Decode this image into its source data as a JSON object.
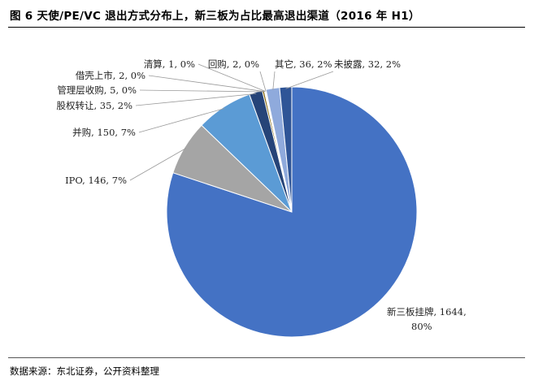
{
  "title": "图 6 天使/PE/VC 退出方式分布上，新三板为占比最高退出渠道（2016 年 H1）",
  "source": "数据来源：东北证券，公开资料整理",
  "chart_data": {
    "type": "pie",
    "title": "",
    "start": "12 o'clock",
    "direction": "clockwise",
    "legend": "none",
    "slices": [
      {
        "name": "新三板挂牌",
        "value": 1644,
        "percent": "80%",
        "label": "新三板挂牌, 1644, 80%",
        "color": "#4472C4"
      },
      {
        "name": "IPO",
        "value": 146,
        "percent": "7%",
        "label": "IPO, 146, 7%",
        "color": "#A5A5A5"
      },
      {
        "name": "并购",
        "value": 150,
        "percent": "7%",
        "label": "并购, 150, 7%",
        "color": "#5B9BD5"
      },
      {
        "name": "股权转让",
        "value": 35,
        "percent": "2%",
        "label": "股权转让, 35, 2%",
        "color": "#264478"
      },
      {
        "name": "管理层收购",
        "value": 5,
        "percent": "0%",
        "label": "管理层收购, 5, 0%",
        "color": "#7F6000"
      },
      {
        "name": "借壳上市",
        "value": 2,
        "percent": "0%",
        "label": "借壳上市, 2, 0%",
        "color": "#636363"
      },
      {
        "name": "清算",
        "value": 1,
        "percent": "0%",
        "label": "清算, 1, 0%",
        "color": "#997300"
      },
      {
        "name": "回购",
        "value": 2,
        "percent": "0%",
        "label": "回购, 2, 0%",
        "color": "#255E91"
      },
      {
        "name": "其它",
        "value": 36,
        "percent": "2%",
        "label": "其它, 36, 2%",
        "color": "#8FAADC"
      },
      {
        "name": "未披露",
        "value": 32,
        "percent": "2%",
        "label": "未披露, 32, 2%",
        "color": "#2F5597"
      }
    ]
  }
}
